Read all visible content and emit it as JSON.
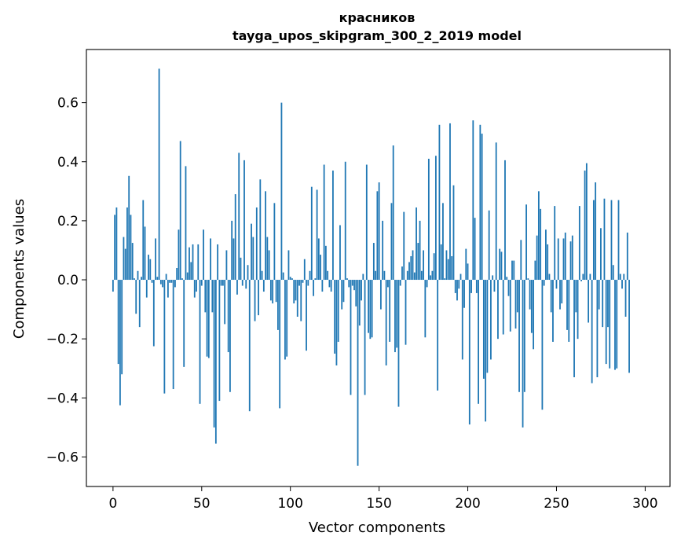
{
  "chart_data": {
    "type": "bar",
    "title": "красников",
    "subtitle": "tayga_upos_skipgram_300_2_2019 model",
    "xlabel": "Vector components",
    "ylabel": "Components values",
    "xlim": [
      -15,
      314
    ],
    "ylim": [
      -0.7,
      0.78
    ],
    "xticks": [
      0,
      50,
      100,
      150,
      200,
      250,
      300
    ],
    "yticks": [
      -0.6,
      -0.4,
      -0.2,
      0.0,
      0.2,
      0.4,
      0.6
    ],
    "xtick_labels": [
      "0",
      "50",
      "100",
      "150",
      "200",
      "250",
      "300"
    ],
    "ytick_labels": [
      "−0.6",
      "−0.4",
      "−0.2",
      "0.0",
      "0.2",
      "0.4",
      "0.6"
    ],
    "bar_color": "#1f77b4",
    "grid": false,
    "values": [
      -0.04,
      0.22,
      0.245,
      -0.285,
      -0.425,
      -0.32,
      0.145,
      0.105,
      0.245,
      0.352,
      0.22,
      0.125,
      0.005,
      -0.115,
      0.03,
      -0.16,
      0.01,
      0.27,
      0.18,
      -0.06,
      0.085,
      0.07,
      -0.01,
      -0.225,
      0.14,
      0.01,
      0.715,
      -0.015,
      -0.025,
      -0.385,
      0.02,
      -0.06,
      -0.01,
      -0.01,
      -0.37,
      -0.025,
      0.04,
      0.17,
      0.47,
      0.005,
      -0.295,
      0.385,
      0.025,
      0.11,
      0.06,
      0.12,
      -0.06,
      -0.04,
      0.12,
      -0.42,
      -0.02,
      0.17,
      -0.11,
      -0.26,
      -0.265,
      0.14,
      -0.11,
      -0.5,
      -0.555,
      0.12,
      -0.41,
      -0.02,
      -0.02,
      -0.15,
      0.1,
      -0.245,
      -0.38,
      0.2,
      0.14,
      0.29,
      -0.05,
      0.43,
      0.075,
      -0.02,
      0.405,
      -0.03,
      0.05,
      -0.445,
      0.19,
      0.145,
      -0.14,
      0.245,
      -0.12,
      0.34,
      0.03,
      -0.04,
      0.3,
      0.145,
      0.1,
      -0.07,
      -0.08,
      0.26,
      -0.075,
      -0.17,
      -0.435,
      0.6,
      0.025,
      -0.27,
      -0.26,
      0.1,
      0.01,
      0.005,
      -0.08,
      -0.07,
      -0.125,
      -0.02,
      -0.14,
      -0.01,
      0.07,
      -0.24,
      -0.02,
      0.03,
      0.315,
      -0.055,
      0.005,
      0.305,
      0.14,
      0.085,
      -0.04,
      0.39,
      0.115,
      0.03,
      -0.025,
      -0.04,
      0.37,
      -0.25,
      -0.29,
      -0.21,
      0.185,
      -0.1,
      -0.075,
      0.4,
      0.005,
      -0.025,
      -0.39,
      -0.02,
      -0.035,
      -0.09,
      -0.63,
      -0.155,
      -0.07,
      0.02,
      -0.39,
      0.39,
      -0.18,
      -0.2,
      -0.195,
      0.125,
      0.03,
      0.3,
      0.33,
      -0.1,
      0.2,
      0.03,
      -0.29,
      -0.025,
      -0.21,
      0.26,
      0.455,
      -0.245,
      -0.23,
      -0.43,
      -0.02,
      0.045,
      0.23,
      -0.22,
      0.03,
      0.06,
      0.08,
      0.1,
      0.025,
      0.245,
      0.125,
      0.2,
      0.03,
      0.1,
      -0.195,
      -0.025,
      0.41,
      0.015,
      0.03,
      0.09,
      0.42,
      -0.375,
      0.525,
      0.12,
      0.26,
      0.005,
      0.1,
      0.07,
      0.53,
      0.08,
      0.32,
      -0.045,
      -0.07,
      -0.03,
      0.02,
      -0.27,
      -0.095,
      0.105,
      0.055,
      -0.49,
      -0.045,
      0.54,
      0.21,
      -0.045,
      -0.42,
      0.525,
      0.495,
      -0.335,
      -0.48,
      -0.315,
      0.235,
      -0.27,
      0.015,
      -0.04,
      0.465,
      -0.2,
      0.105,
      0.095,
      -0.185,
      0.405,
      0.01,
      -0.055,
      -0.175,
      0.065,
      0.065,
      -0.165,
      -0.11,
      -0.38,
      0.135,
      -0.5,
      -0.38,
      0.255,
      0.005,
      -0.1,
      -0.18,
      -0.235,
      0.065,
      0.15,
      0.3,
      0.24,
      -0.44,
      -0.02,
      0.17,
      0.12,
      0.02,
      -0.11,
      -0.21,
      0.25,
      -0.03,
      0.14,
      -0.1,
      -0.08,
      0.14,
      0.16,
      -0.17,
      -0.21,
      0.13,
      0.15,
      -0.33,
      -0.11,
      -0.2,
      0.25,
      -0.005,
      0.02,
      0.37,
      0.395,
      -0.145,
      0.02,
      -0.35,
      0.27,
      0.33,
      -0.33,
      -0.1,
      0.175,
      -0.16,
      0.275,
      -0.285,
      -0.16,
      -0.3,
      0.27,
      0.05,
      -0.305,
      -0.3,
      0.27,
      0.02,
      -0.03,
      0.02,
      -0.125,
      0.16,
      -0.315
    ]
  }
}
